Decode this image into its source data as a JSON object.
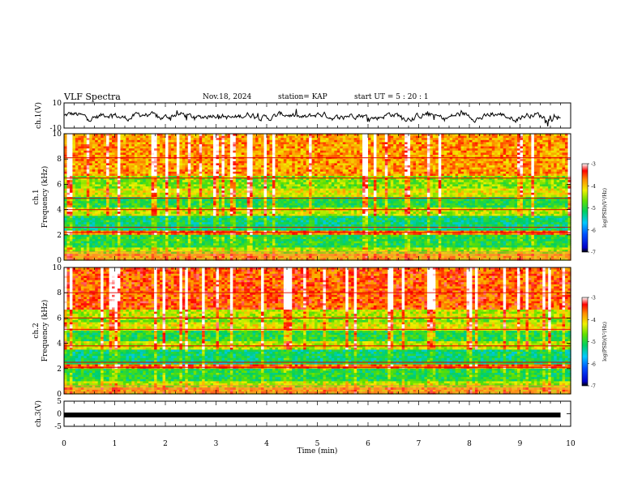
{
  "header": {
    "title": "VLF Spectra",
    "date": "Nov.18, 2024",
    "station": "station= KAP",
    "start_ut": "start  UT  =   5  : 20 : 1"
  },
  "chart_data": [
    {
      "type": "line",
      "name": "ch1-waveform",
      "ylabel": "ch.1(V)",
      "ylim": [
        -10,
        10
      ],
      "yticks": [
        "10",
        "-10"
      ],
      "xlim": [
        0,
        10
      ],
      "note": "broadband waveform fluctuating roughly between -4 and +3 V"
    },
    {
      "type": "heatmap",
      "name": "ch1-spectrogram",
      "ylabel": "ch.1\nFrequency  (kHz)",
      "ylim": [
        0,
        10
      ],
      "yticks": [
        "0",
        "2",
        "4",
        "6",
        "8",
        "10"
      ],
      "xlim": [
        0,
        10
      ],
      "colorbar": {
        "label": "log(PSD)(V²/Hz)",
        "range": [
          -7,
          -3
        ],
        "ticks": [
          "-3",
          "-4",
          "-5",
          "-6",
          "-7"
        ]
      }
    },
    {
      "type": "heatmap",
      "name": "ch2-spectrogram",
      "ylabel": "ch.2\nFrequency  (kHz)",
      "ylim": [
        0,
        10
      ],
      "yticks": [
        "0",
        "2",
        "4",
        "6",
        "8",
        "10"
      ],
      "xlim": [
        0,
        10
      ],
      "colorbar": {
        "label": "log(PSD)(V²/Hz)",
        "range": [
          -7,
          -3
        ],
        "ticks": [
          "-3",
          "-4",
          "-5",
          "-6",
          "-7"
        ]
      }
    },
    {
      "type": "line",
      "name": "ch3-trace",
      "ylabel": "ch.3(V)",
      "ylim": [
        -5,
        5
      ],
      "yticks": [
        "5",
        "0",
        "-5"
      ],
      "xlim": [
        0,
        10
      ],
      "level": -0.5,
      "xlabel": "Time  (min)",
      "xticks": [
        "0",
        "1",
        "2",
        "3",
        "4",
        "5",
        "6",
        "7",
        "8",
        "9",
        "10"
      ]
    }
  ]
}
